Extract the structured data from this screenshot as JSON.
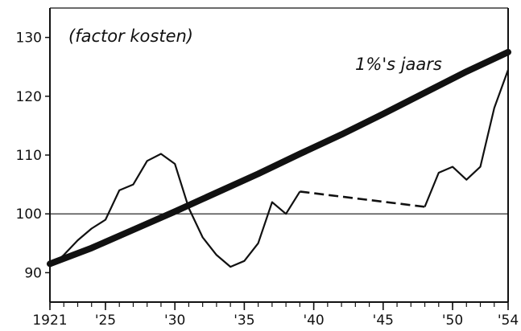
{
  "chart_data": {
    "type": "line",
    "title": "",
    "xlabel": "",
    "ylabel": "",
    "xlim": [
      1921,
      1954
    ],
    "ylim": [
      85,
      135
    ],
    "x_ticks": [
      {
        "value": 1921,
        "label": "1921"
      },
      {
        "value": 1925,
        "label": "'25"
      },
      {
        "value": 1930,
        "label": "'30"
      },
      {
        "value": 1935,
        "label": "'35"
      },
      {
        "value": 1940,
        "label": "'40"
      },
      {
        "value": 1945,
        "label": "'45"
      },
      {
        "value": 1950,
        "label": "'50"
      },
      {
        "value": 1954,
        "label": "'54"
      }
    ],
    "y_ticks": [
      {
        "value": 90,
        "label": "90"
      },
      {
        "value": 100,
        "label": "100"
      },
      {
        "value": 110,
        "label": "110"
      },
      {
        "value": 120,
        "label": "120"
      },
      {
        "value": 130,
        "label": "130"
      }
    ],
    "reference_line": {
      "y": 100
    },
    "annotations": [
      {
        "text": "(factor kosten)"
      },
      {
        "text": "1%'s jaars"
      }
    ],
    "series": [
      {
        "name": "1%'s jaars",
        "style": "thick",
        "x": [
          1921,
          1924,
          1927,
          1930,
          1933,
          1936,
          1939,
          1942,
          1945,
          1948,
          1951,
          1954
        ],
        "values": [
          91.5,
          94.2,
          97.3,
          100.4,
          103.6,
          106.8,
          110.2,
          113.5,
          117.0,
          120.6,
          124.2,
          127.5
        ]
      },
      {
        "style": "solid",
        "segments": [
          {
            "dashed": false,
            "x": [
              1921,
              1922,
              1923,
              1924,
              1925,
              1926,
              1927,
              1928,
              1929,
              1930,
              1931,
              1932,
              1933,
              1934,
              1935,
              1936,
              1937,
              1938,
              1939
            ],
            "values": [
              91,
              93,
              95.5,
              97.5,
              99,
              104,
              105,
              109,
              110.2,
              108.5,
              101,
              96,
              93,
              91,
              92,
              95,
              102,
              100,
              103.8
            ]
          },
          {
            "dashed": true,
            "x": [
              1939,
              1948
            ],
            "values": [
              103.8,
              101.2
            ]
          },
          {
            "dashed": false,
            "x": [
              1948,
              1949,
              1950,
              1951,
              1952,
              1953,
              1954
            ],
            "values": [
              101.2,
              107,
              108,
              105.8,
              108,
              118,
              124.5
            ]
          }
        ]
      }
    ]
  }
}
